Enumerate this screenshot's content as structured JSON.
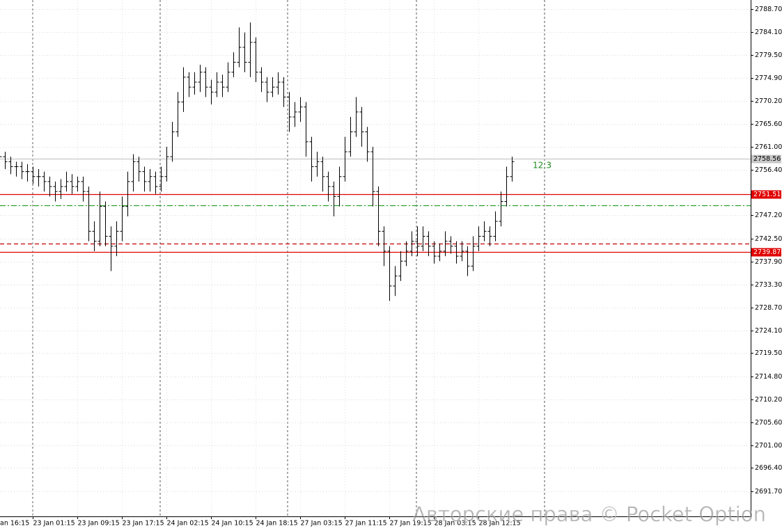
{
  "chart_data": {
    "type": "ohlc",
    "categories": [
      "an 16:15",
      null,
      null,
      null,
      null,
      null,
      "23 Jan 01:15",
      null,
      null,
      null,
      null,
      null,
      null,
      null,
      "23 Jan 09:15",
      null,
      null,
      null,
      null,
      null,
      null,
      null,
      "23 Jan 17:15",
      null,
      null,
      null,
      null,
      null,
      null,
      null,
      "24 Jan 02:15",
      null,
      null,
      null,
      null,
      null,
      null,
      null,
      "24 Jan 10:15",
      null,
      null,
      null,
      null,
      null,
      null,
      null,
      "24 Jan 18:15",
      null,
      null,
      null,
      null,
      null,
      null,
      null,
      "27 Jan 03:15",
      null,
      null,
      null,
      null,
      null,
      null,
      null,
      "27 Jan 11:15",
      null,
      null,
      null,
      null,
      null,
      null,
      null,
      "27 Jan 19:15",
      null,
      null,
      null,
      null,
      null,
      null,
      null,
      "28 Jan 03:15",
      null,
      null,
      null,
      null,
      null,
      null,
      null,
      "28 Jan 12:15",
      null,
      null,
      null,
      null,
      null,
      null
    ],
    "open": [
      2760,
      2759,
      2758,
      2757,
      2757,
      2756,
      2756,
      2755,
      2755,
      2754,
      2753,
      2752,
      2753,
      2754,
      2753,
      2754,
      2752,
      2744,
      2742,
      2749,
      2743,
      2741,
      2744,
      2749,
      2754,
      2758,
      2756,
      2754,
      2755,
      2753,
      2755,
      2759,
      2764,
      2770,
      2775,
      2773,
      2774,
      2776,
      2773,
      2772,
      2774,
      2773,
      2776,
      2778,
      2781,
      2778,
      2782,
      2776,
      2774,
      2772,
      2773,
      2774,
      2771,
      2767,
      2768,
      2769,
      2762,
      2757,
      2758,
      2755,
      2753,
      2751,
      2755,
      2760,
      2764,
      2768,
      2764,
      2760,
      2752,
      2744,
      2740,
      2733,
      2735,
      2738,
      2740,
      2742,
      2741,
      2743,
      2741,
      2739,
      2740,
      2742,
      2741,
      2739,
      2740,
      2737,
      2741,
      2743,
      2744,
      2743,
      2746,
      2750,
      2755
    ],
    "high": [
      2761,
      2760,
      2759,
      2758,
      2758,
      2757.5,
      2757,
      2756.5,
      2756,
      2755,
      2754,
      2754.5,
      2756,
      2755.5,
      2755,
      2755,
      2753,
      2746,
      2752,
      2750,
      2745,
      2746,
      2751,
      2756,
      2759.5,
      2759,
      2757,
      2756.5,
      2756,
      2757,
      2761,
      2766,
      2772,
      2777,
      2776,
      2776,
      2777.5,
      2777,
      2774.5,
      2776,
      2775.5,
      2778,
      2780,
      2785,
      2784,
      2786,
      2783,
      2777,
      2775,
      2775,
      2776,
      2775,
      2772,
      2770,
      2771,
      2770,
      2763,
      2760,
      2759,
      2756,
      2754,
      2757,
      2763,
      2767,
      2771,
      2769,
      2765,
      2761,
      2753,
      2745,
      2741,
      2737,
      2740,
      2742,
      2744,
      2745,
      2745,
      2744,
      2742,
      2741.5,
      2744,
      2743,
      2742,
      2742,
      2741,
      2743,
      2745,
      2746,
      2745,
      2748,
      2752,
      2757,
      2759
    ],
    "low": [
      2757.5,
      2756.5,
      2755.5,
      2755,
      2754.5,
      2754,
      2753.5,
      2753,
      2752,
      2751,
      2750,
      2750.5,
      2752,
      2751.5,
      2752,
      2750,
      2742,
      2740,
      2741,
      2741,
      2736,
      2739,
      2742,
      2747,
      2752,
      2754,
      2752,
      2752,
      2751.5,
      2752,
      2754,
      2758,
      2763,
      2768,
      2771,
      2771.5,
      2772,
      2771,
      2769.5,
      2771,
      2771,
      2772,
      2775,
      2777,
      2776,
      2775,
      2774,
      2772,
      2770,
      2771,
      2771.5,
      2769,
      2764,
      2765,
      2766,
      2759,
      2754,
      2755,
      2752,
      2750,
      2747,
      2749,
      2754,
      2759,
      2763,
      2761,
      2758,
      2749,
      2741,
      2737,
      2730,
      2731,
      2734,
      2737,
      2739,
      2739,
      2740,
      2739,
      2737.5,
      2738,
      2739,
      2739.5,
      2737.5,
      2738,
      2735,
      2736,
      2740,
      2742,
      2741,
      2742,
      2745,
      2749,
      2754
    ],
    "close": [
      2759,
      2758,
      2757,
      2757,
      2756,
      2756,
      2755,
      2755,
      2754,
      2753,
      2752,
      2753,
      2754,
      2753,
      2754,
      2752,
      2744,
      2742,
      2749,
      2743,
      2741,
      2744,
      2749,
      2754,
      2758,
      2756,
      2754,
      2755,
      2753,
      2755,
      2759,
      2764,
      2770,
      2775,
      2773,
      2774,
      2776,
      2773,
      2772,
      2774,
      2773,
      2776,
      2778,
      2781,
      2778,
      2782,
      2776,
      2774,
      2772,
      2773,
      2774,
      2771,
      2767,
      2768,
      2769,
      2762,
      2757,
      2758,
      2755,
      2753,
      2751,
      2755,
      2760,
      2764,
      2768,
      2764,
      2760,
      2752,
      2744,
      2740,
      2733,
      2735,
      2738,
      2740,
      2742,
      2741,
      2743,
      2741,
      2739,
      2740,
      2742,
      2741,
      2739,
      2740,
      2737,
      2741,
      2743,
      2744,
      2743,
      2746,
      2750,
      2755,
      2758
    ],
    "color": "#000000",
    "ylim": [
      2686.66,
      2790.52
    ],
    "yticks": [
      {
        "value": 2788.7,
        "label": "2788.70"
      },
      {
        "value": 2784.1,
        "label": "2784.10"
      },
      {
        "value": 2779.5,
        "label": "2779.50"
      },
      {
        "value": 2774.9,
        "label": "2774.90"
      },
      {
        "value": 2770.2,
        "label": "2770.20"
      },
      {
        "value": 2765.6,
        "label": "2765.60"
      },
      {
        "value": 2761.0,
        "label": "2761.00"
      },
      {
        "value": 2756.4,
        "label": "2756.40"
      },
      {
        "value": 2747.2,
        "label": "2747.20"
      },
      {
        "value": 2742.5,
        "label": "2742.50"
      },
      {
        "value": 2737.9,
        "label": "2737.90"
      },
      {
        "value": 2733.3,
        "label": "2733.30"
      },
      {
        "value": 2728.7,
        "label": "2728.70"
      },
      {
        "value": 2724.1,
        "label": "2724.10"
      },
      {
        "value": 2719.5,
        "label": "2719.50"
      },
      {
        "value": 2714.8,
        "label": "2714.80"
      },
      {
        "value": 2710.2,
        "label": "2710.20"
      },
      {
        "value": 2705.6,
        "label": "2705.60"
      },
      {
        "value": 2701.0,
        "label": "2701.00"
      },
      {
        "value": 2696.4,
        "label": "2696.40"
      },
      {
        "value": 2691.7,
        "label": "2691.70"
      }
    ],
    "grid": true,
    "hlines": [
      {
        "value": 2758.56,
        "color": "#c8c8c8",
        "dash": "solid",
        "tag": true
      },
      {
        "value": 2751.51,
        "color": "#e00000",
        "dash": "solid",
        "tag": true
      },
      {
        "value": 2749.2,
        "color": "#2ca02c",
        "dash": "dashdot",
        "tag": false
      },
      {
        "value": 2741.5,
        "color": "#c00000",
        "dash": "dashed",
        "tag": false
      },
      {
        "value": 2739.87,
        "color": "#e00000",
        "dash": "solid",
        "tag": true
      }
    ],
    "timer": "12:3",
    "watermark": "Авторские права © Pocket Option"
  }
}
